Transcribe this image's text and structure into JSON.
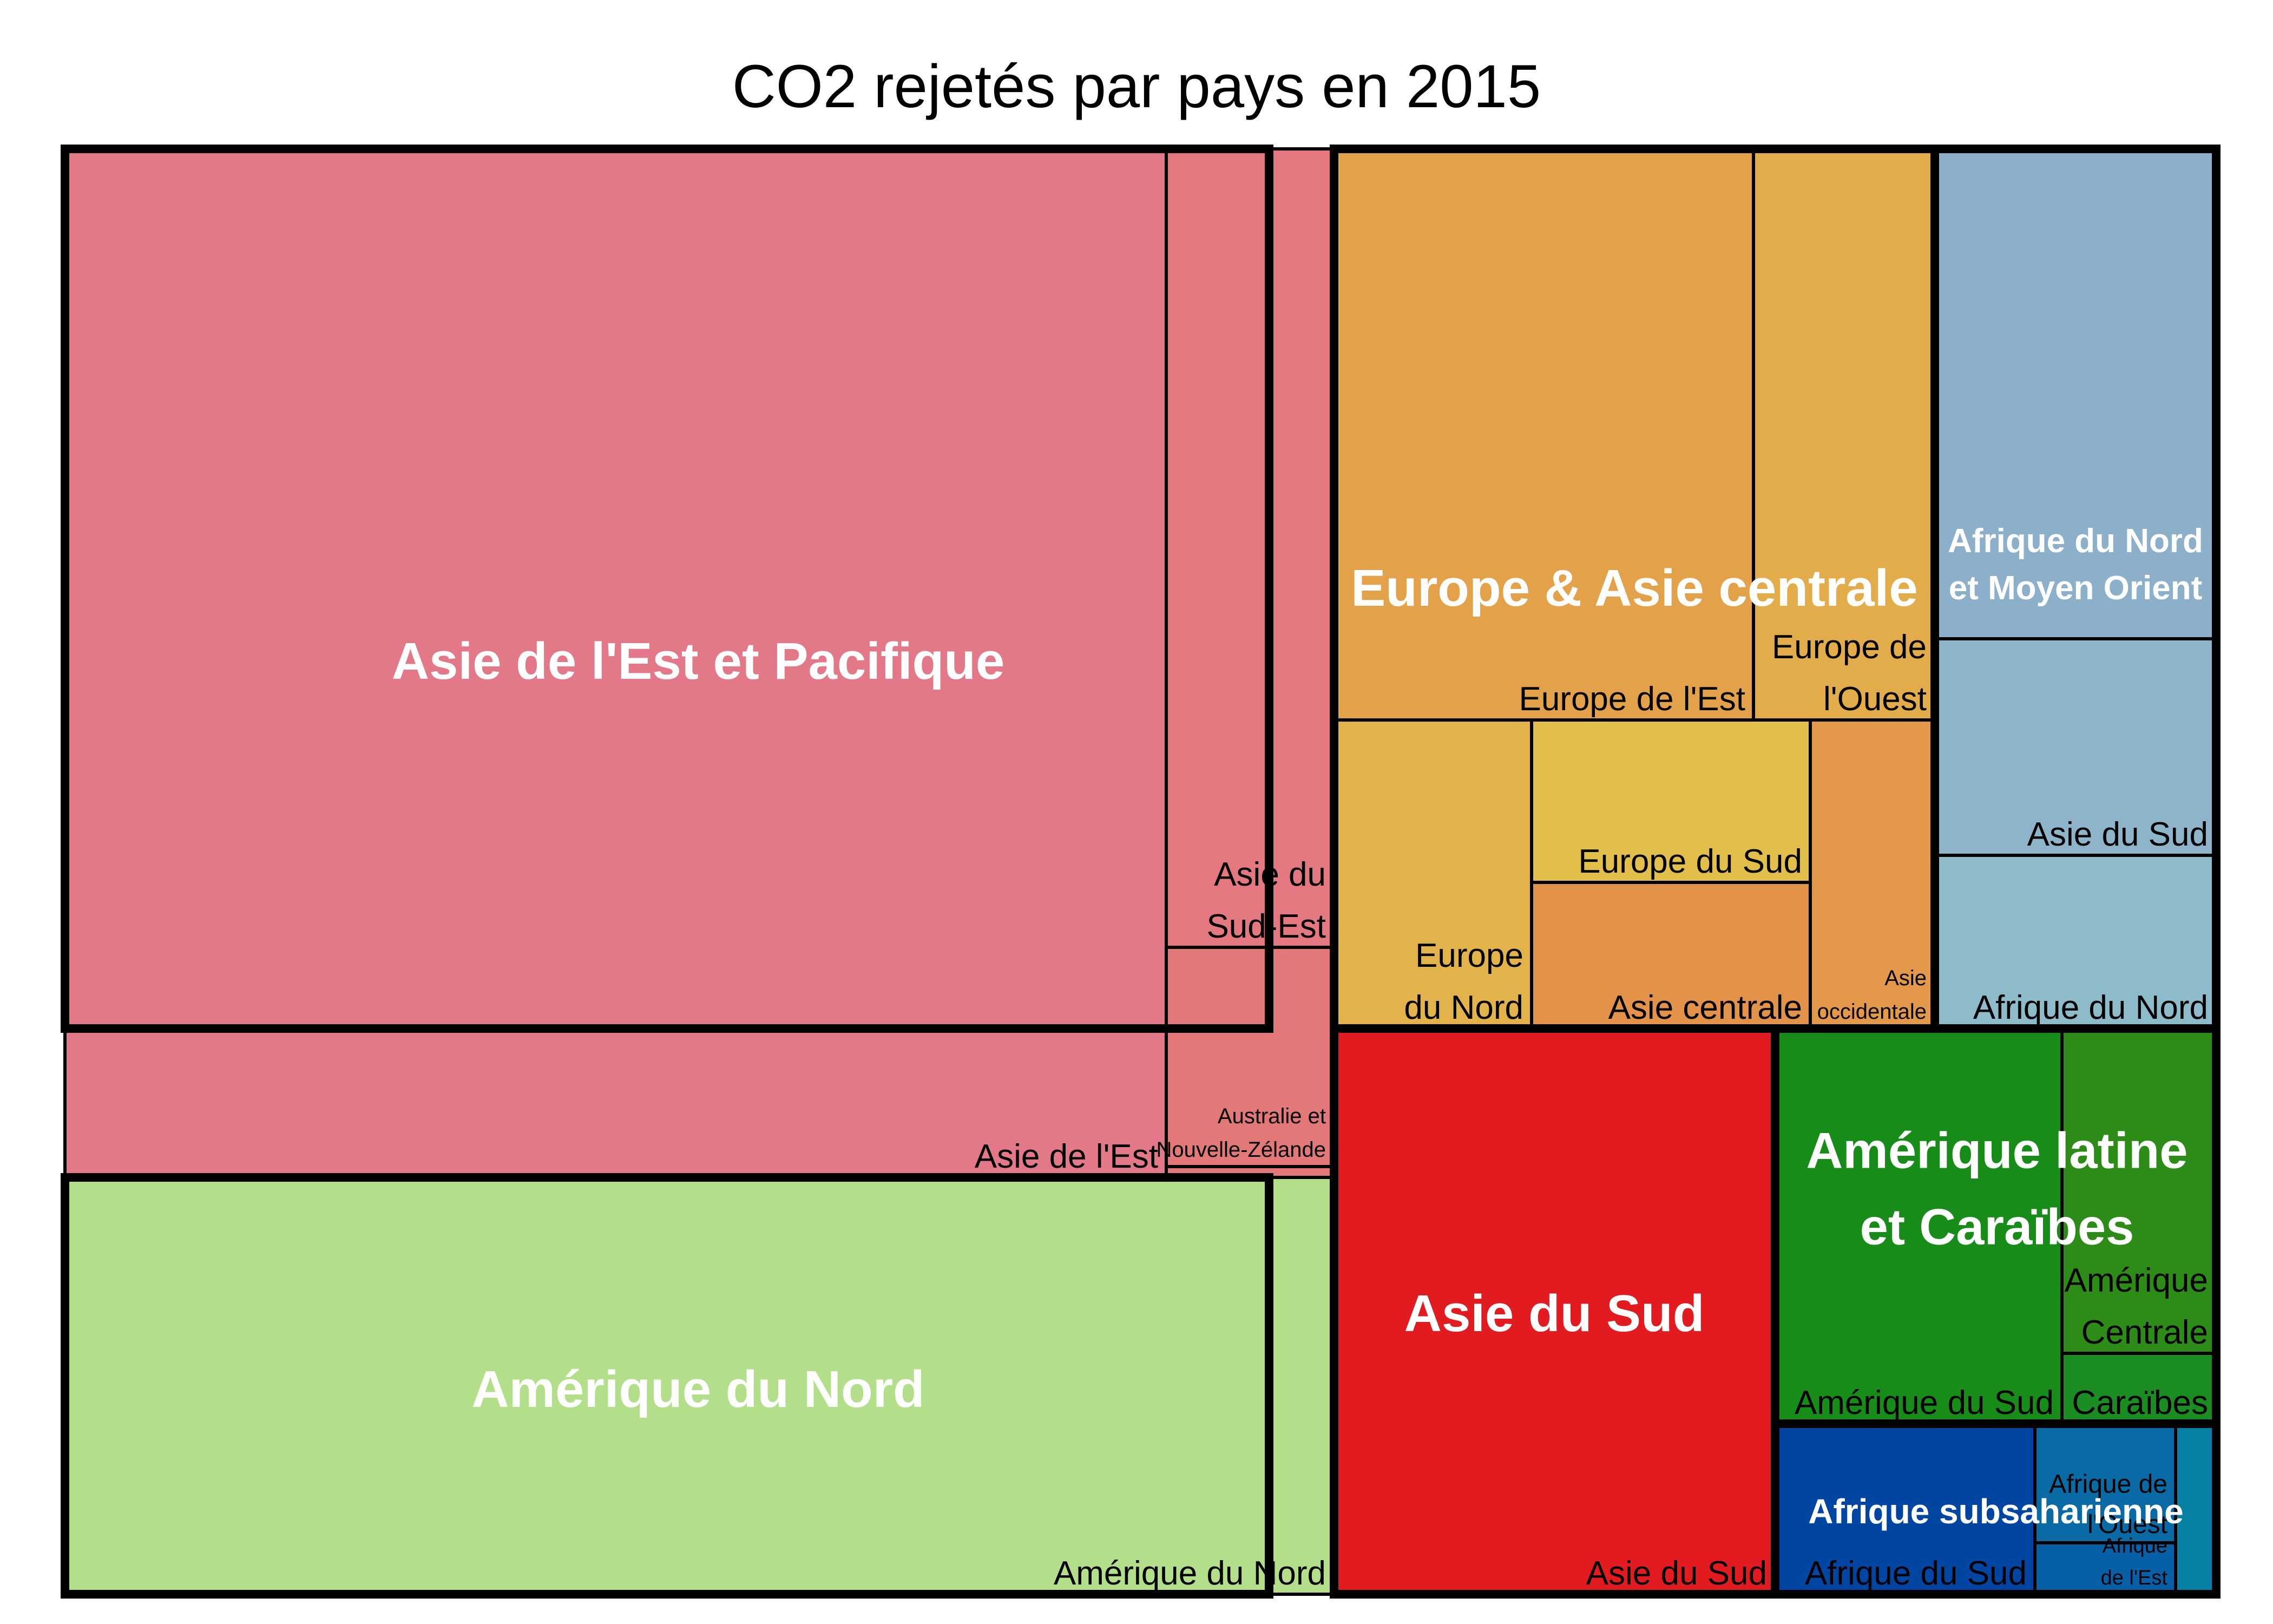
{
  "chart_data": {
    "type": "treemap",
    "title": "CO2 rejetés par pays en 2015",
    "groups": [
      {
        "name": "Asie de l'Est et Pacifique",
        "color": "#e37888",
        "label_lines": [
          "Asie de l'Est et Pacifique"
        ],
        "value": 11.39,
        "children": [
          {
            "name": "Asie de l'Est",
            "value": 9.79,
            "color": "#e37888",
            "label_lines": [
              "Asie de l'Est"
            ]
          },
          {
            "name": "Asie du Sud-Est",
            "value": 1.16,
            "color": "#e37880",
            "label_lines": [
              "Asie du",
              "Sud-Est"
            ]
          },
          {
            "name": "Australie et Nouvelle-Zélande",
            "value": 0.39,
            "color": "#e27878",
            "label_lines": [
              "Australie et",
              "Nouvelle-Zélande"
            ]
          },
          {
            "name": "",
            "value": 0.05,
            "color": "#e27878",
            "label_lines": []
          }
        ]
      },
      {
        "name": "Amérique du Nord",
        "color": "#b3df8a",
        "label_lines": [
          "Amérique du Nord"
        ],
        "value": 5.6,
        "children": [
          {
            "name": "Amérique du Nord",
            "value": 5.6,
            "color": "#b3df8a",
            "label_lines": [
              "Amérique du Nord"
            ]
          }
        ]
      },
      {
        "name": "Europe & Asie centrale",
        "color": "#e3a24a",
        "label_lines": [
          "Europe & Asie centrale"
        ],
        "value": 6.14,
        "children": [
          {
            "name": "Europe de l'Est",
            "value": 2.86,
            "color": "#e3a24a",
            "label_lines": [
              "Europe de l'Est"
            ]
          },
          {
            "name": "Europe de l'Ouest",
            "value": 1.18,
            "color": "#e3ac4a",
            "label_lines": [
              "Europe de",
              "l'Ouest"
            ]
          },
          {
            "name": "Europe du Nord",
            "value": 0.59,
            "color": "#e2b34a",
            "label_lines": [
              "Europe",
              "du Nord"
            ]
          },
          {
            "name": "Europe du Sud",
            "value": 0.47,
            "color": "#e2bf4a",
            "label_lines": [
              "Europe du Sud"
            ]
          },
          {
            "name": "Asie centrale",
            "value": 0.62,
            "color": "#e3924a",
            "label_lines": [
              "Asie centrale"
            ]
          },
          {
            "name": "Asie occidentale",
            "value": 0.42,
            "color": "#e3984a",
            "label_lines": [
              "Asie",
              "occidentale"
            ]
          }
        ]
      },
      {
        "name": "Afrique du Nord et Moyen Orient",
        "color": "#8db0ca",
        "label_lines": [
          "Afrique du Nord",
          "et Moyen Orient"
        ],
        "value": 2.68,
        "children": [
          {
            "name": "",
            "value": 1.45,
            "color": "#8db0ca",
            "label_lines": []
          },
          {
            "name": "Asie du Sud",
            "value": 0.65,
            "color": "#8db4c9",
            "label_lines": [
              "Asie du Sud"
            ]
          },
          {
            "name": "Afrique du Nord",
            "value": 0.58,
            "color": "#8ebbca",
            "label_lines": [
              "Afrique du Nord"
            ]
          }
        ]
      },
      {
        "name": "Asie du Sud",
        "color": "#e11b1f",
        "label_lines": [
          "Asie du Sud"
        ],
        "value": 2.58,
        "children": [
          {
            "name": "Asie du Sud",
            "value": 2.58,
            "color": "#e11b1f",
            "label_lines": [
              "Asie du Sud"
            ]
          }
        ]
      },
      {
        "name": "Amérique latine et Caraïbes",
        "color": "#188c18",
        "label_lines": [
          "Amérique latine",
          "et Caraïbes"
        ],
        "value": 1.71,
        "children": [
          {
            "name": "Amérique du Sud",
            "value": 1.24,
            "color": "#188c18",
            "label_lines": [
              "Amérique du Sud"
            ]
          },
          {
            "name": "Amérique Centrale",
            "value": 0.35,
            "color": "#2d8c18",
            "label_lines": [
              "Amérique",
              "Centrale"
            ]
          },
          {
            "name": "Caraïbes",
            "value": 0.12,
            "color": "#1b8c22",
            "label_lines": [
              "Caraïbes"
            ]
          }
        ]
      },
      {
        "name": "Afrique subsaharienne",
        "color": "#0145a3",
        "label_lines": [
          "Afrique subsaharienne"
        ],
        "value": 0.79,
        "children": [
          {
            "name": "Afrique du Sud",
            "value": 0.5,
            "color": "#0145a3",
            "label_lines": [
              "Afrique du Sud"
            ]
          },
          {
            "name": "Afrique de l'Ouest",
            "value": 0.15,
            "color": "#0a6aa5",
            "label_lines": [
              "Afrique de",
              "l'Ouest"
            ]
          },
          {
            "name": "Afrique de l'Est",
            "value": 0.06,
            "color": "#0760a5",
            "label_lines": [
              "Afrique",
              "de l'Est"
            ]
          },
          {
            "name": "",
            "value": 0.08,
            "color": "#0880a5",
            "label_lines": []
          }
        ]
      }
    ]
  }
}
